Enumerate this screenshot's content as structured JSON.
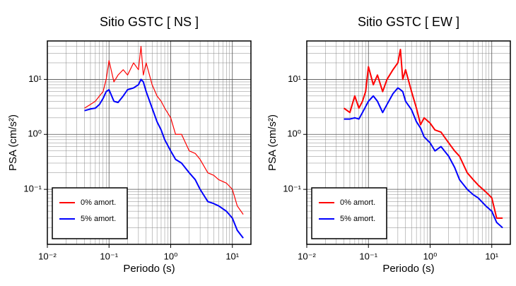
{
  "chart_data": [
    {
      "type": "line",
      "title": "Sitio GSTC [ NS ]",
      "x_label": "Periodo (s)",
      "y_label": "PSA (cm/s²)",
      "x": [
        0.04,
        0.05,
        0.06,
        0.07,
        0.08,
        0.09,
        0.1,
        0.12,
        0.14,
        0.17,
        0.2,
        0.25,
        0.3,
        0.33,
        0.36,
        0.4,
        0.5,
        0.6,
        0.7,
        0.8,
        1.0,
        1.2,
        1.5,
        2,
        2.5,
        3,
        4,
        5,
        6,
        8,
        10,
        12,
        15
      ],
      "series": [
        {
          "name": "0% amort.",
          "color": "#ff0000",
          "width": 1.2,
          "values": [
            3,
            3.5,
            4,
            5,
            6,
            10,
            22,
            9,
            12,
            15,
            12,
            20,
            15,
            40,
            12,
            20,
            8,
            5,
            4,
            3,
            2,
            1.0,
            1.0,
            0.5,
            0.45,
            0.35,
            0.2,
            0.18,
            0.15,
            0.13,
            0.1,
            0.05,
            0.035
          ]
        },
        {
          "name": "5% amort.",
          "color": "#0000ff",
          "width": 2,
          "values": [
            2.7,
            2.9,
            3,
            3.5,
            4.5,
            6,
            6.5,
            4,
            3.8,
            5,
            6.5,
            7,
            8,
            10,
            9,
            6,
            3,
            1.7,
            1.2,
            0.8,
            0.5,
            0.35,
            0.3,
            0.2,
            0.15,
            0.1,
            0.06,
            0.055,
            0.05,
            0.04,
            0.03,
            0.018,
            0.013
          ]
        }
      ],
      "xlim": [
        0.01,
        20
      ],
      "ylim": [
        0.01,
        50
      ],
      "log_x": true,
      "log_y": true,
      "grid": true,
      "legend": "lower-left",
      "xticks": [
        {
          "value": 0.01,
          "label": "10⁻²"
        },
        {
          "value": 0.1,
          "label": "10⁻¹"
        },
        {
          "value": 1,
          "label": "10⁰"
        },
        {
          "value": 10,
          "label": "10¹"
        }
      ],
      "yticks": [
        {
          "value": 0.1,
          "label": "10⁻¹"
        },
        {
          "value": 1,
          "label": "10⁰"
        },
        {
          "value": 10,
          "label": "10¹"
        }
      ]
    },
    {
      "type": "line",
      "title": "Sitio GSTC [ EW ]",
      "x_label": "Periodo (s)",
      "y_label": "PSA (cm/s²)",
      "x": [
        0.04,
        0.05,
        0.06,
        0.07,
        0.08,
        0.09,
        0.1,
        0.12,
        0.14,
        0.17,
        0.2,
        0.25,
        0.3,
        0.33,
        0.36,
        0.4,
        0.5,
        0.6,
        0.7,
        0.8,
        1.0,
        1.2,
        1.5,
        2,
        2.5,
        3,
        4,
        5,
        6,
        8,
        10,
        12,
        15
      ],
      "series": [
        {
          "name": "0% amort.",
          "color": "#ff0000",
          "width": 2,
          "values": [
            3,
            2.5,
            5,
            3,
            4,
            6,
            17,
            8,
            12,
            6,
            10,
            15,
            20,
            35,
            10,
            15,
            6,
            3,
            1.5,
            2,
            1.6,
            1.2,
            1.1,
            0.7,
            0.5,
            0.4,
            0.2,
            0.15,
            0.12,
            0.09,
            0.07,
            0.03,
            0.03
          ]
        },
        {
          "name": "5% amort.",
          "color": "#0000ff",
          "width": 2,
          "values": [
            1.9,
            1.9,
            2,
            1.9,
            2.5,
            3.2,
            4,
            5,
            4,
            2.5,
            3.5,
            5.5,
            7,
            6.5,
            6,
            4,
            2.8,
            1.7,
            1.3,
            0.9,
            0.7,
            0.5,
            0.6,
            0.4,
            0.25,
            0.15,
            0.1,
            0.08,
            0.07,
            0.05,
            0.04,
            0.025,
            0.02
          ]
        }
      ],
      "xlim": [
        0.01,
        20
      ],
      "ylim": [
        0.01,
        50
      ],
      "log_x": true,
      "log_y": true,
      "grid": true,
      "legend": "lower-left",
      "xticks": [
        {
          "value": 0.01,
          "label": "10⁻²"
        },
        {
          "value": 0.1,
          "label": "10⁻¹"
        },
        {
          "value": 1,
          "label": "10⁰"
        },
        {
          "value": 10,
          "label": "10¹"
        }
      ],
      "yticks": [
        {
          "value": 0.1,
          "label": "10⁻¹"
        },
        {
          "value": 1,
          "label": "10⁰"
        },
        {
          "value": 10,
          "label": "10¹"
        }
      ]
    }
  ]
}
